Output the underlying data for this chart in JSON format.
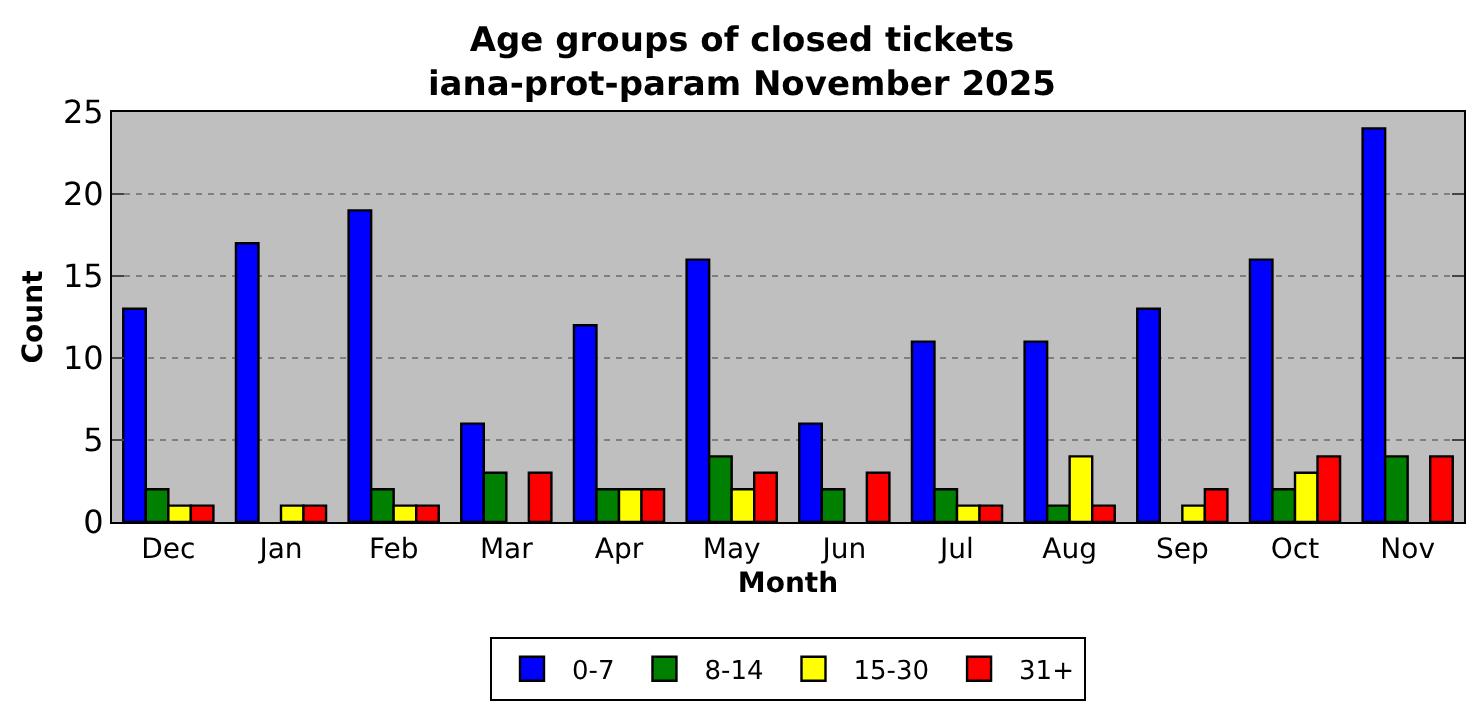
{
  "chart_data": {
    "type": "bar",
    "title": "Age groups of closed tickets",
    "subtitle": "iana-prot-param November 2025",
    "xlabel": "Month",
    "ylabel": "Count",
    "categories": [
      "Dec",
      "Jan",
      "Feb",
      "Mar",
      "Apr",
      "May",
      "Jun",
      "Jul",
      "Aug",
      "Sep",
      "Oct",
      "Nov"
    ],
    "series": [
      {
        "name": "0-7",
        "color": "#0000ff",
        "values": [
          13,
          17,
          19,
          6,
          12,
          16,
          6,
          11,
          11,
          13,
          16,
          24
        ]
      },
      {
        "name": "8-14",
        "color": "#008000",
        "values": [
          2,
          0,
          2,
          3,
          2,
          4,
          2,
          2,
          1,
          0,
          2,
          4
        ]
      },
      {
        "name": "15-30",
        "color": "#ffff00",
        "values": [
          1,
          1,
          1,
          0,
          2,
          2,
          0,
          1,
          4,
          1,
          3,
          0
        ]
      },
      {
        "name": "31+",
        "color": "#ff0000",
        "values": [
          1,
          1,
          1,
          3,
          2,
          3,
          3,
          1,
          1,
          2,
          4,
          4
        ]
      }
    ],
    "ylim": [
      0,
      25
    ],
    "yticks": [
      0,
      5,
      10,
      15,
      20,
      25
    ],
    "grid": "y",
    "legend": "bottom"
  }
}
